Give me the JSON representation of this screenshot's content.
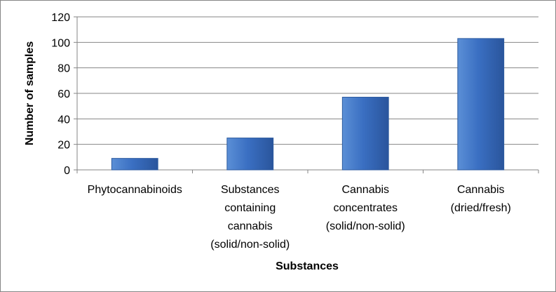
{
  "chart_data": {
    "type": "bar",
    "xlabel": "Substances",
    "ylabel": "Number of samples",
    "ylim": [
      0,
      120
    ],
    "yticks": [
      0,
      20,
      40,
      60,
      80,
      100,
      120
    ],
    "grid": true,
    "legend": "none",
    "categories": [
      [
        "Phytocannabinoids"
      ],
      [
        "Substances",
        "containing",
        "cannabis",
        "(solid/non-solid)"
      ],
      [
        "Cannabis",
        "concentrates",
        "(solid/non-solid)"
      ],
      [
        "Cannabis",
        "(dried/fresh)"
      ]
    ],
    "values": [
      9,
      25,
      57,
      103
    ],
    "colors": {
      "bar_fill_top": "#5b8fd6",
      "bar_fill_mid": "#3a6fc2",
      "bar_fill_bottom": "#2a559c",
      "bar_stroke": "#2c5a9f",
      "grid": "#868686",
      "axis": "#868686"
    }
  }
}
